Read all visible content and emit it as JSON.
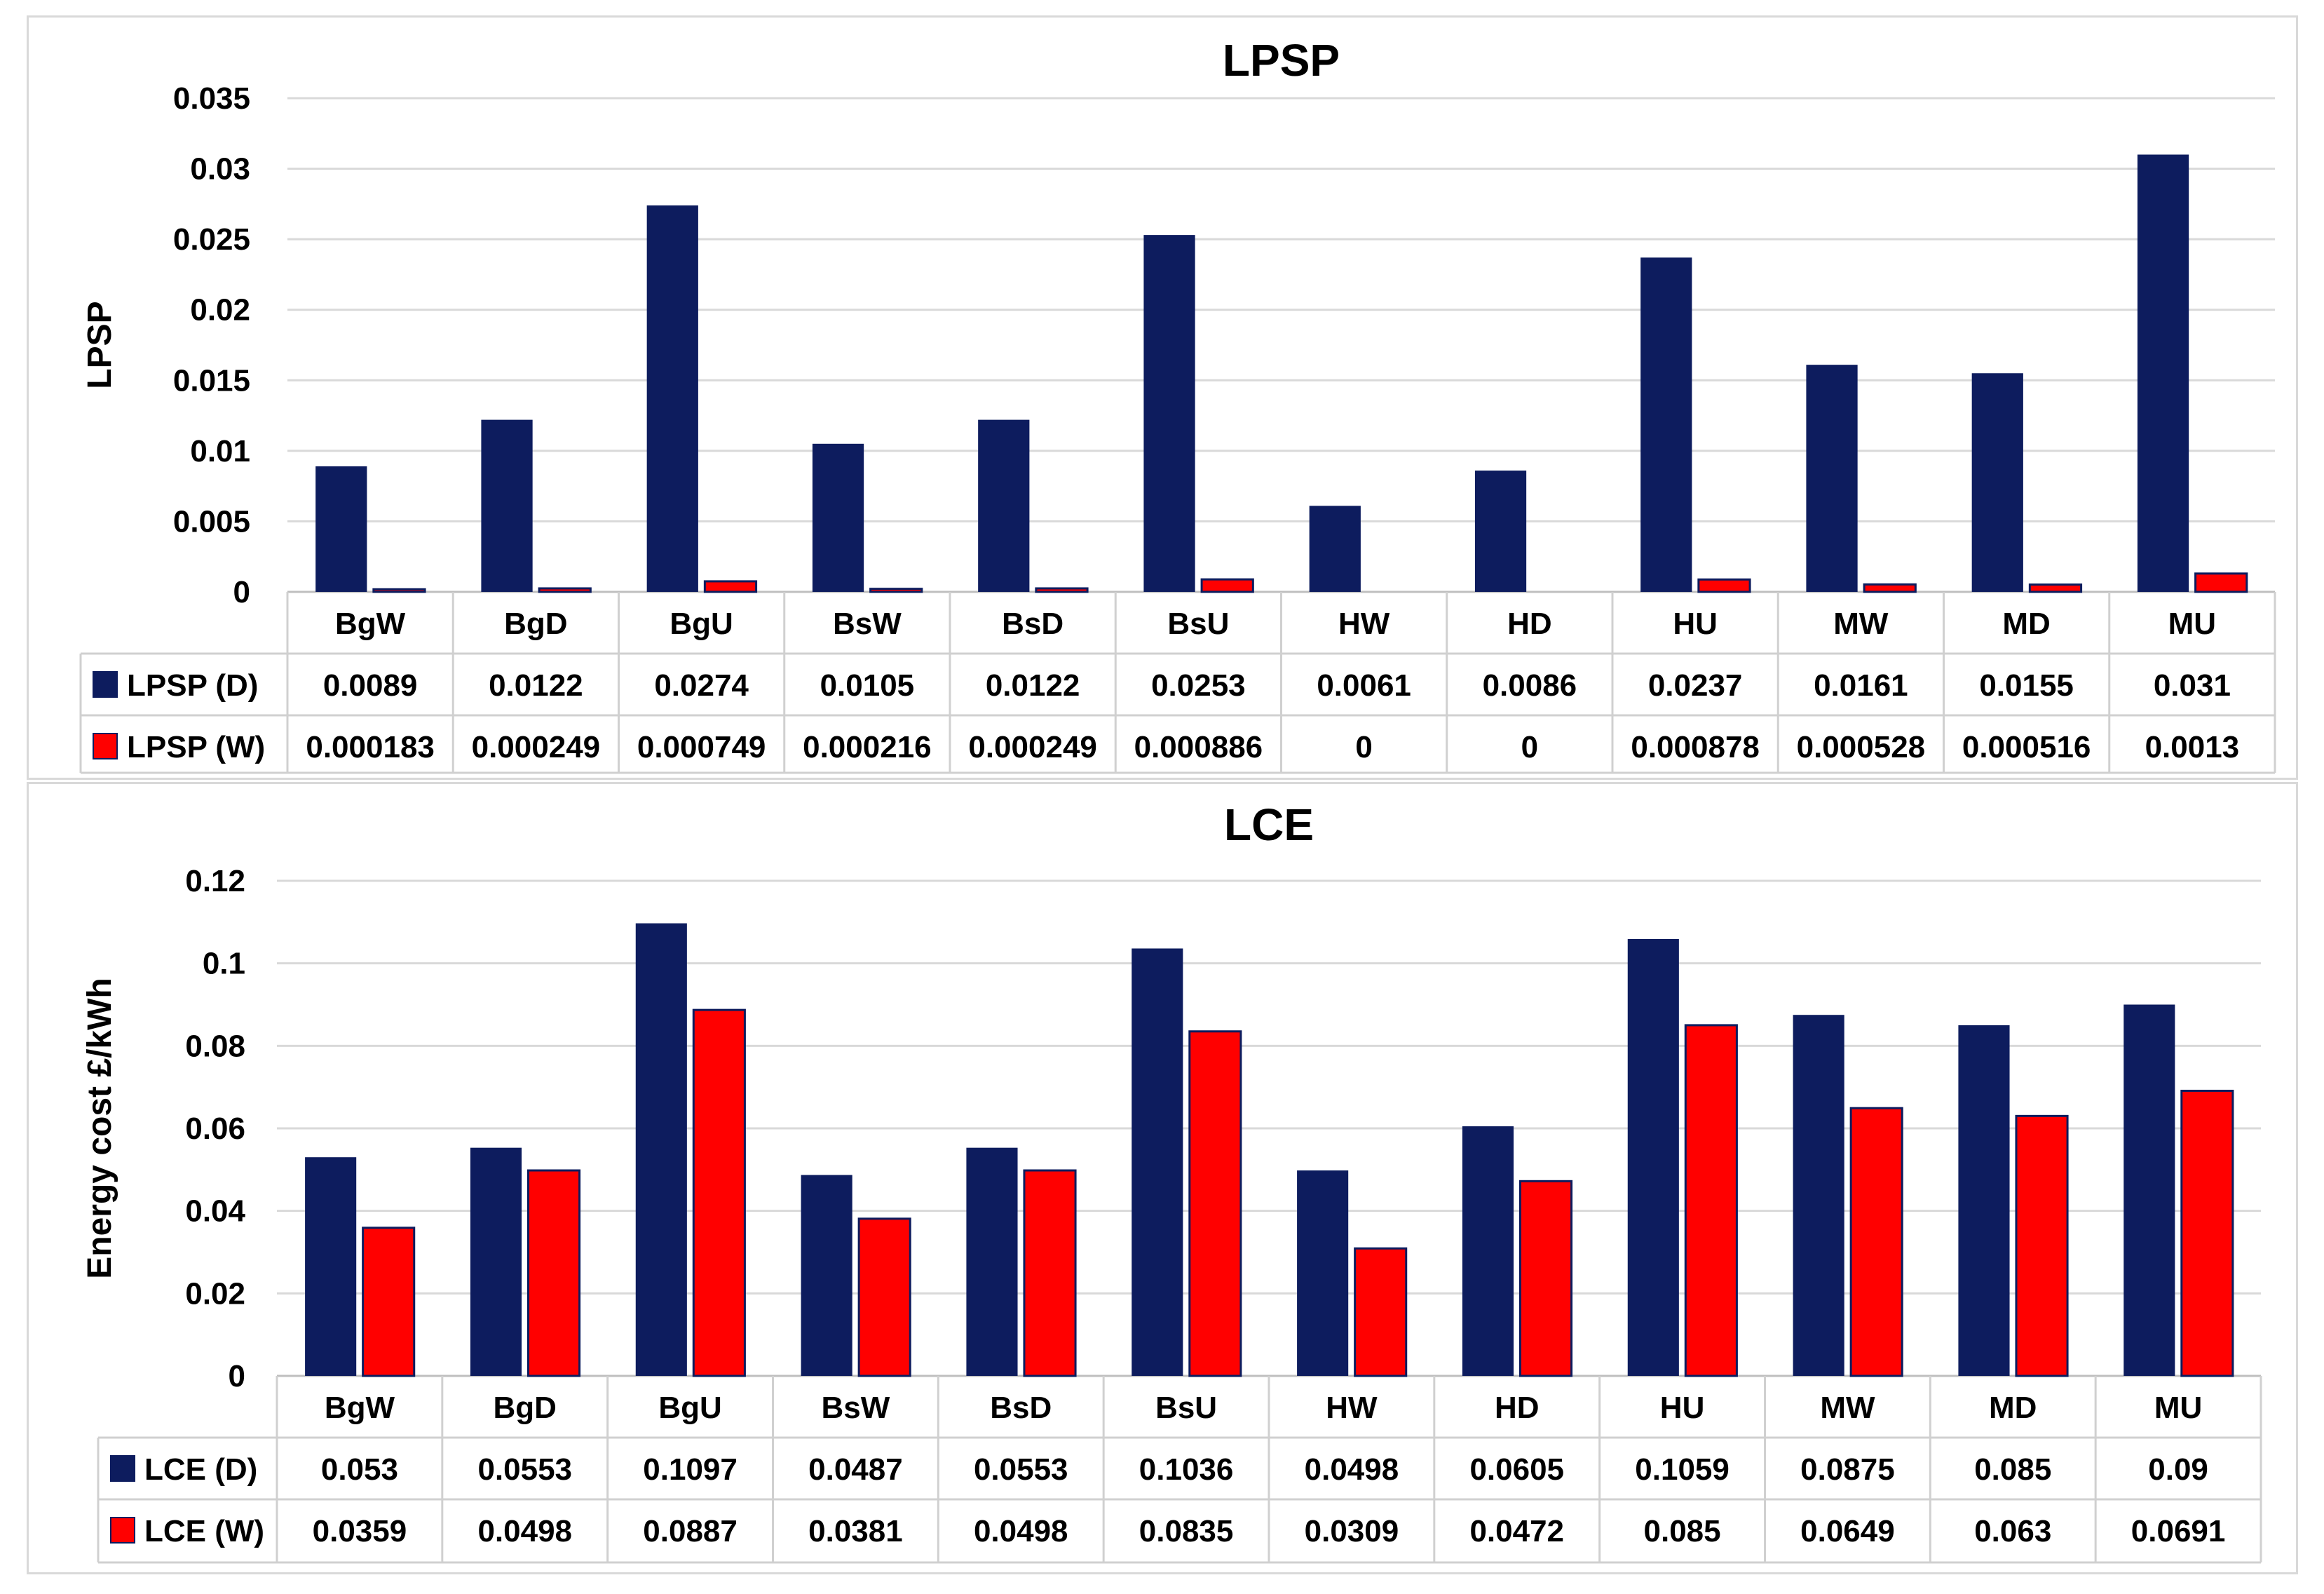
{
  "chart_data": [
    {
      "type": "bar",
      "title": "LPSP",
      "xlabel": "",
      "ylabel": "LPSP",
      "ylim": [
        0,
        0.035
      ],
      "yticks": [
        "0",
        "0.005",
        "0.01",
        "0.015",
        "0.02",
        "0.025",
        "0.03",
        "0.035"
      ],
      "grid": true,
      "categories": [
        "BgW",
        "BgD",
        "BgU",
        "BsW",
        "BsD",
        "BsU",
        "HW",
        "HD",
        "HU",
        "MW",
        "MD",
        "MU"
      ],
      "series": [
        {
          "name": "LPSP (D)",
          "color": "#0d1c5e",
          "values": [
            0.0089,
            0.0122,
            0.0274,
            0.0105,
            0.0122,
            0.0253,
            0.0061,
            0.0086,
            0.0237,
            0.0161,
            0.0155,
            0.031
          ],
          "labels": [
            "0.0089",
            "0.0122",
            "0.0274",
            "0.0105",
            "0.0122",
            "0.0253",
            "0.0061",
            "0.0086",
            "0.0237",
            "0.0161",
            "0.0155",
            "0.031"
          ]
        },
        {
          "name": "LPSP (W)",
          "color": "#ff0000",
          "values": [
            0.000183,
            0.000249,
            0.000749,
            0.000216,
            0.000249,
            0.000886,
            0,
            0,
            0.000878,
            0.000528,
            0.000516,
            0.0013
          ],
          "labels": [
            "0.000183",
            "0.000249",
            "0.000749",
            "0.000216",
            "0.000249",
            "0.000886",
            "0",
            "0",
            "0.000878",
            "0.000528",
            "0.000516",
            "0.0013"
          ]
        }
      ]
    },
    {
      "type": "bar",
      "title": "LCE",
      "xlabel": "",
      "ylabel": "Energy cost  £/kWh",
      "ylim": [
        0,
        0.12
      ],
      "yticks": [
        "0",
        "0.02",
        "0.04",
        "0.06",
        "0.08",
        "0.1",
        "0.12"
      ],
      "grid": true,
      "categories": [
        "BgW",
        "BgD",
        "BgU",
        "BsW",
        "BsD",
        "BsU",
        "HW",
        "HD",
        "HU",
        "MW",
        "MD",
        "MU"
      ],
      "series": [
        {
          "name": "LCE (D)",
          "color": "#0d1c5e",
          "values": [
            0.053,
            0.0553,
            0.1097,
            0.0487,
            0.0553,
            0.1036,
            0.0498,
            0.0605,
            0.1059,
            0.0875,
            0.085,
            0.09
          ],
          "labels": [
            "0.053",
            "0.0553",
            "0.1097",
            "0.0487",
            "0.0553",
            "0.1036",
            "0.0498",
            "0.0605",
            "0.1059",
            "0.0875",
            "0.085",
            "0.09"
          ]
        },
        {
          "name": "LCE (W)",
          "color": "#ff0000",
          "values": [
            0.0359,
            0.0498,
            0.0887,
            0.0381,
            0.0498,
            0.0835,
            0.0309,
            0.0472,
            0.085,
            0.0649,
            0.063,
            0.0691
          ],
          "labels": [
            "0.0359",
            "0.0498",
            "0.0887",
            "0.0381",
            "0.0498",
            "0.0835",
            "0.0309",
            "0.0472",
            "0.085",
            "0.0649",
            "0.063",
            "0.0691"
          ]
        }
      ]
    }
  ]
}
